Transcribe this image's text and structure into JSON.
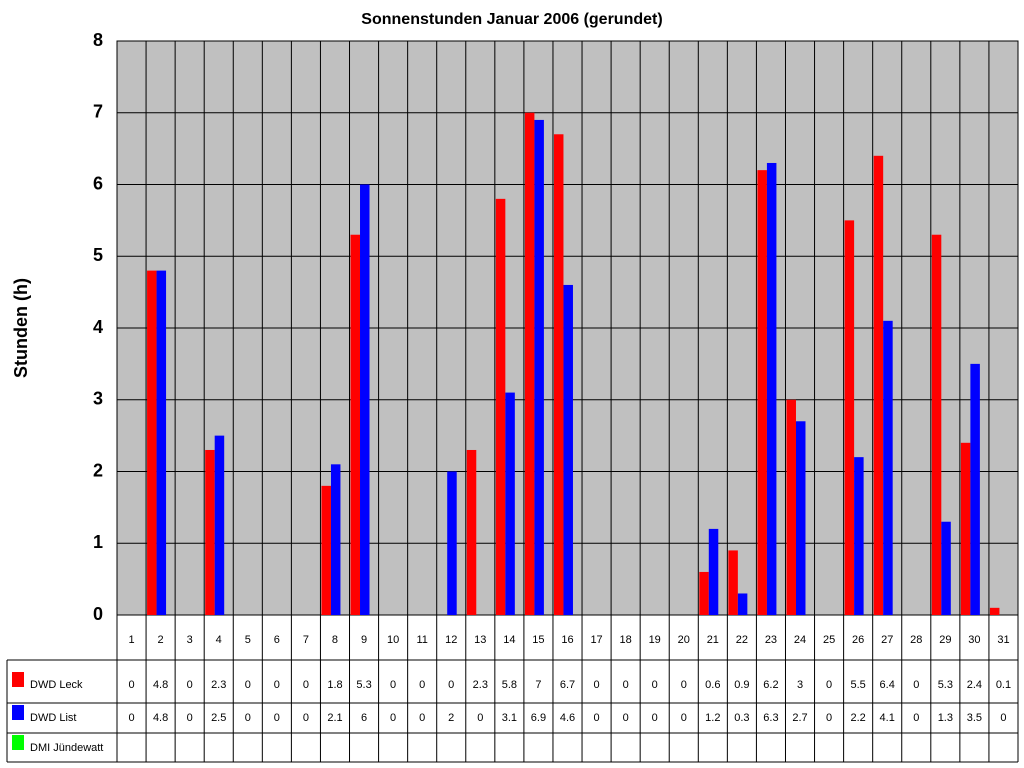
{
  "chart_data": {
    "type": "bar",
    "title": "Sonnenstunden Januar 2006 (gerundet)",
    "y_label": "Stunden (h)",
    "categories": [
      "1",
      "2",
      "3",
      "4",
      "5",
      "6",
      "7",
      "8",
      "9",
      "10",
      "11",
      "12",
      "13",
      "14",
      "15",
      "16",
      "17",
      "18",
      "19",
      "20",
      "21",
      "22",
      "23",
      "24",
      "25",
      "26",
      "27",
      "28",
      "29",
      "30",
      "31"
    ],
    "series": [
      {
        "name": "DWD Leck",
        "color": "#ff0000",
        "values": [
          0,
          4.8,
          0,
          2.3,
          0,
          0,
          0,
          1.8,
          5.3,
          0,
          0,
          0,
          2.3,
          5.8,
          7,
          6.7,
          0,
          0,
          0,
          0,
          0.6,
          0.9,
          6.2,
          3,
          0,
          5.5,
          6.4,
          0,
          5.3,
          2.4,
          0.1
        ]
      },
      {
        "name": "DWD List",
        "color": "#0000ff",
        "values": [
          0,
          4.8,
          0,
          2.5,
          0,
          0,
          0,
          2.1,
          6,
          0,
          0,
          2,
          0,
          3.1,
          6.9,
          4.6,
          0,
          0,
          0,
          0,
          1.2,
          0.3,
          6.3,
          2.7,
          0,
          2.2,
          4.1,
          0,
          1.3,
          3.5,
          0
        ]
      },
      {
        "name": "DMI Jündewatt",
        "color": "#00ff00",
        "values": [
          null,
          null,
          null,
          null,
          null,
          null,
          null,
          null,
          null,
          null,
          null,
          null,
          null,
          null,
          null,
          null,
          null,
          null,
          null,
          null,
          null,
          null,
          null,
          null,
          null,
          null,
          null,
          null,
          null,
          null,
          null
        ]
      }
    ],
    "ylim": [
      0,
      8
    ],
    "yticks": [
      0,
      1,
      2,
      3,
      4,
      5,
      6,
      7,
      8
    ],
    "grid": true,
    "data_table": true
  }
}
